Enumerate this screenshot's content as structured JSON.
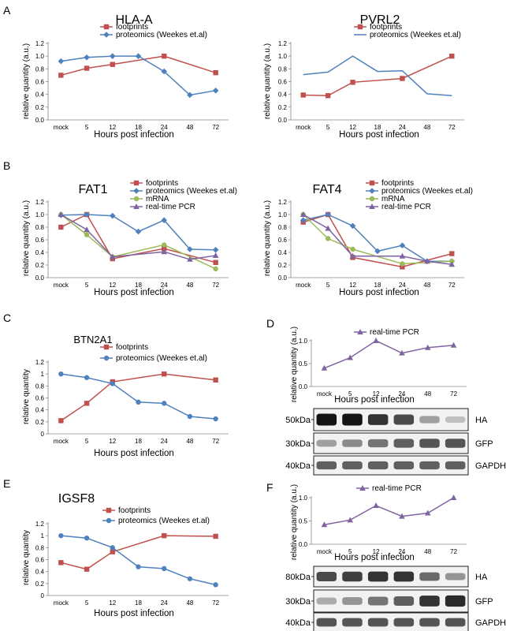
{
  "panel_letters": [
    "A",
    "B",
    "C",
    "D",
    "E",
    "F"
  ],
  "colors": {
    "footprints": "#c0504d",
    "proteomics": "#4f81bd",
    "mrna": "#9bbb59",
    "rtpcr": "#8064a2"
  },
  "chart_data": [
    {
      "id": "hla-a",
      "type": "line",
      "title": "HLA-A",
      "xlabel": "Hours post infection",
      "ylabel": "relative quantity (a.u.)",
      "categories": [
        "mock",
        "5",
        "12",
        "18",
        "24",
        "48",
        "72"
      ],
      "ylim": [
        0,
        1.2
      ],
      "yticks": [
        "0.0",
        "0.2",
        "0.4",
        "0.6",
        "0.8",
        "1.0",
        "1.2"
      ],
      "series": [
        {
          "name": "footprints",
          "color": "footprints",
          "marker": "square",
          "values": [
            0.7,
            0.81,
            0.87,
            null,
            1.0,
            null,
            0.74
          ]
        },
        {
          "name": "proteomics (Weekes et.al)",
          "color": "proteomics",
          "marker": "diamond",
          "values": [
            0.92,
            0.98,
            1.0,
            1.0,
            0.76,
            0.39,
            0.46
          ]
        }
      ]
    },
    {
      "id": "pvrl2",
      "type": "line",
      "title": "PVRL2",
      "xlabel": "Hours post infection",
      "ylabel": "relative quantity (a.u.)",
      "categories": [
        "mock",
        "5",
        "12",
        "18",
        "24",
        "48",
        "72"
      ],
      "ylim": [
        0,
        1.2
      ],
      "yticks": [
        "0.0",
        "0.2",
        "0.4",
        "0.6",
        "0.8",
        "1.0",
        "1.2"
      ],
      "series": [
        {
          "name": "footprints",
          "color": "footprints",
          "marker": "square",
          "values": [
            0.39,
            0.38,
            0.59,
            null,
            0.65,
            null,
            1.0
          ]
        },
        {
          "name": "proteomics (Weekes et.al)",
          "color": "proteomics",
          "marker": "none",
          "values": [
            0.71,
            0.75,
            1.0,
            0.76,
            0.77,
            0.41,
            0.38
          ]
        }
      ]
    },
    {
      "id": "fat1",
      "type": "line",
      "title": "FAT1",
      "xlabel": "Hours post infection",
      "ylabel": "relative quantity (a.u.)",
      "categories": [
        "mock",
        "5",
        "12",
        "18",
        "24",
        "48",
        "72"
      ],
      "ylim": [
        0,
        1.2
      ],
      "yticks": [
        "0.0",
        "0.2",
        "0.4",
        "0.6",
        "0.8",
        "1.0",
        "1.2"
      ],
      "series": [
        {
          "name": "footprints",
          "color": "footprints",
          "marker": "square",
          "values": [
            0.8,
            1.0,
            0.3,
            null,
            0.46,
            null,
            0.24
          ]
        },
        {
          "name": "proteomics (Weekes et.al)",
          "color": "proteomics",
          "marker": "diamond",
          "values": [
            0.99,
            1.0,
            0.98,
            0.73,
            0.91,
            0.45,
            0.44
          ]
        },
        {
          "name": "mRNA",
          "color": "mrna",
          "marker": "circle",
          "values": [
            1.0,
            0.68,
            0.33,
            null,
            0.52,
            null,
            0.14
          ]
        },
        {
          "name": "real-time PCR",
          "color": "rtpcr",
          "marker": "triangle",
          "values": [
            1.0,
            0.76,
            0.33,
            null,
            0.41,
            0.29,
            0.35
          ]
        }
      ]
    },
    {
      "id": "fat4",
      "type": "line",
      "title": "FAT4",
      "xlabel": "Hours post infection",
      "ylabel": "relative quantity (a.u.)",
      "categories": [
        "mock",
        "5",
        "12",
        "18",
        "24",
        "48",
        "72"
      ],
      "ylim": [
        0,
        1.2
      ],
      "yticks": [
        "0.0",
        "0.2",
        "0.4",
        "0.6",
        "0.8",
        "1.0",
        "1.2"
      ],
      "series": [
        {
          "name": "footprints",
          "color": "footprints",
          "marker": "square",
          "values": [
            0.88,
            1.0,
            0.32,
            null,
            0.17,
            null,
            0.38
          ]
        },
        {
          "name": "proteomics (Weekes et.al)",
          "color": "proteomics",
          "marker": "diamond",
          "values": [
            0.91,
            1.0,
            0.82,
            0.42,
            0.51,
            0.26,
            0.26
          ]
        },
        {
          "name": "mRNA",
          "color": "mrna",
          "marker": "circle",
          "values": [
            1.0,
            0.62,
            0.45,
            null,
            0.22,
            null,
            0.26
          ]
        },
        {
          "name": "real-time PCR",
          "color": "rtpcr",
          "marker": "triangle",
          "values": [
            1.0,
            0.78,
            0.34,
            null,
            0.34,
            0.26,
            0.21
          ]
        }
      ]
    },
    {
      "id": "btn2a1",
      "type": "line",
      "title": "BTN2A1",
      "xlabel": "Hours post infection",
      "ylabel": "relative quantity",
      "categories": [
        "mock",
        "5",
        "12",
        "18",
        "24",
        "48",
        "72"
      ],
      "ylim": [
        0,
        1.2
      ],
      "yticks": [
        "0",
        "0.2",
        "0.4",
        "0.6",
        "0.8",
        "1",
        "1.2"
      ],
      "series": [
        {
          "name": "footprints",
          "color": "footprints",
          "marker": "square",
          "values": [
            0.22,
            0.51,
            0.87,
            null,
            1.0,
            null,
            0.9
          ]
        },
        {
          "name": "proteomics (Weekes et.al)",
          "color": "proteomics",
          "marker": "circle",
          "values": [
            1.0,
            0.94,
            0.84,
            0.53,
            0.51,
            0.29,
            0.25
          ]
        }
      ]
    },
    {
      "id": "btn2a1-pcr",
      "type": "line",
      "title": "",
      "xlabel": "Hours post infection",
      "ylabel": "relative quantity (a.u.)",
      "categories": [
        "mock",
        "5",
        "12",
        "24",
        "48",
        "72"
      ],
      "ylim": [
        0,
        1.0
      ],
      "yticks": [
        "0.0",
        "0.5",
        "1.0"
      ],
      "series": [
        {
          "name": "real-time PCR",
          "color": "rtpcr",
          "marker": "triangle",
          "values": [
            0.4,
            0.63,
            1.0,
            0.73,
            0.85,
            0.9
          ]
        }
      ]
    },
    {
      "id": "igsf8",
      "type": "line",
      "title": "IGSF8",
      "xlabel": "Hours post infection",
      "ylabel": "relative quantity",
      "categories": [
        "mock",
        "5",
        "12",
        "18",
        "24",
        "48",
        "72"
      ],
      "ylim": [
        0,
        1.2
      ],
      "yticks": [
        "0",
        "0.2",
        "0.4",
        "0.6",
        "0.8",
        "1",
        "1.2"
      ],
      "series": [
        {
          "name": "footprints",
          "color": "footprints",
          "marker": "square",
          "values": [
            0.55,
            0.44,
            0.73,
            null,
            1.0,
            null,
            0.99
          ]
        },
        {
          "name": "proteomics (Weekes et.al)",
          "color": "proteomics",
          "marker": "circle",
          "values": [
            1.0,
            0.96,
            0.8,
            0.48,
            0.45,
            0.28,
            0.18
          ]
        }
      ]
    },
    {
      "id": "igsf8-pcr",
      "type": "line",
      "title": "",
      "xlabel": "Hours post infection",
      "ylabel": "relative quantity (a.u.)",
      "categories": [
        "mock",
        "5",
        "12",
        "24",
        "48",
        "72"
      ],
      "ylim": [
        0,
        1.0
      ],
      "yticks": [
        "0.0",
        "0.5",
        "1.0"
      ],
      "series": [
        {
          "name": "real-time PCR",
          "color": "rtpcr",
          "marker": "triangle",
          "values": [
            0.42,
            0.52,
            0.83,
            0.6,
            0.67,
            1.0
          ]
        }
      ]
    }
  ],
  "blots": [
    {
      "id": "blot-d",
      "rows": [
        {
          "size": "50kDa",
          "label": "HA",
          "intensity": [
            1.0,
            1.0,
            0.85,
            0.75,
            0.35,
            0.2
          ]
        },
        {
          "size": "30kDa",
          "label": "GFP",
          "intensity": [
            0.35,
            0.45,
            0.55,
            0.65,
            0.7,
            0.7
          ]
        },
        {
          "size": "40kDa",
          "label": "GAPDH",
          "intensity": [
            0.65,
            0.65,
            0.65,
            0.65,
            0.65,
            0.65
          ]
        }
      ]
    },
    {
      "id": "blot-f",
      "rows": [
        {
          "size": "80kDa",
          "label": "HA",
          "intensity": [
            0.75,
            0.8,
            0.85,
            0.85,
            0.6,
            0.4
          ]
        },
        {
          "size": "30kDa",
          "label": "GFP",
          "intensity": [
            0.3,
            0.4,
            0.55,
            0.65,
            0.85,
            0.9
          ]
        },
        {
          "size": "40kDa",
          "label": "GAPDH",
          "intensity": [
            0.7,
            0.7,
            0.7,
            0.7,
            0.7,
            0.7
          ]
        }
      ]
    }
  ]
}
